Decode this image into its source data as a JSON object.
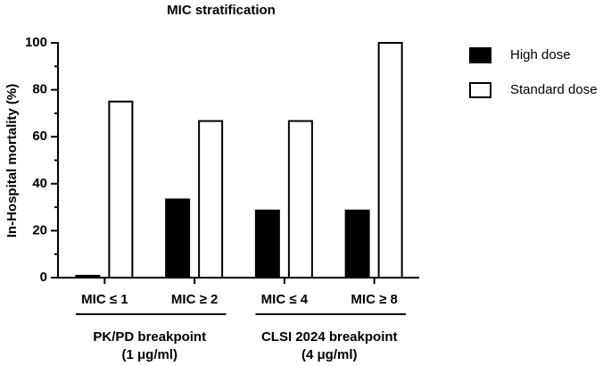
{
  "chart_data": {
    "type": "bar",
    "title": "MIC stratification",
    "y_label": "In-Hospital mortality (%)",
    "categories": [
      "MIC ≤ 1",
      "MIC ≥ 2",
      "MIC ≤ 4",
      "MIC ≥ 8"
    ],
    "groups": [
      [
        "PK/PD breakpoint",
        "(1 μg/ml)"
      ],
      [
        "CLSI 2024 breakpoint",
        "(4 μg/ml)"
      ]
    ],
    "series": [
      {
        "name": "High dose",
        "color": "#000000",
        "values": [
          0.8,
          33.3,
          28.6,
          28.6
        ]
      },
      {
        "name": "Standard dose",
        "color": "#ffffff",
        "values": [
          75,
          66.7,
          66.7,
          100
        ]
      }
    ],
    "ylim": [
      0,
      100
    ],
    "yticks": [
      0,
      20,
      40,
      60,
      80,
      100
    ],
    "yminor_ticks": [
      10,
      30,
      50,
      70,
      90
    ],
    "legend": "right"
  }
}
